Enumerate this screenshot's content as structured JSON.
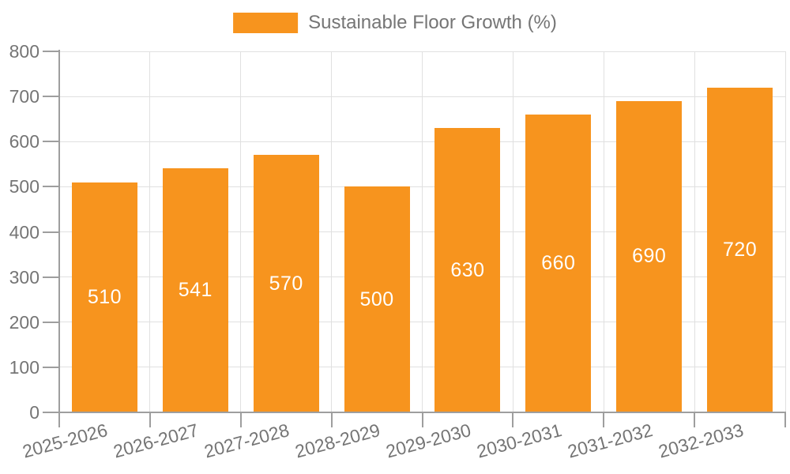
{
  "chart_data": {
    "type": "bar",
    "title": "",
    "legend": {
      "position": "top-center",
      "label": "Sustainable Floor Growth (%)"
    },
    "categories": [
      "2025-2026",
      "2026-2027",
      "2027-2028",
      "2028-2029",
      "2029-2030",
      "2030-2031",
      "2031-2032",
      "2032-2033"
    ],
    "series": [
      {
        "name": "Sustainable Floor Growth (%)",
        "color": "#F7941E",
        "values": [
          510,
          541,
          570,
          500,
          630,
          660,
          690,
          720
        ]
      }
    ],
    "value_labels": {
      "visible": true,
      "position": "center-of-bar",
      "color": "#FFFFFF"
    },
    "xlabel": "",
    "ylabel": "",
    "x_axis": {
      "tick_label_rotation_deg": -15,
      "tick_labels": [
        "2025-2026",
        "2026-2027",
        "2027-2028",
        "2028-2029",
        "2029-2030",
        "2030-2031",
        "2031-2032",
        "2032-2033"
      ]
    },
    "y_axis": {
      "min": 0,
      "max": 800,
      "tick_step": 100,
      "tick_labels": [
        "0",
        "100",
        "200",
        "300",
        "400",
        "500",
        "600",
        "700",
        "800"
      ]
    },
    "grid": {
      "horizontal": true,
      "vertical": true
    }
  },
  "colors": {
    "bar": "#F7941E",
    "grid": "#E0E0E0",
    "axis": "#9E9E9E",
    "tick": "#9E9E9E",
    "label_text": "#757575",
    "value_text": "#FFFFFF",
    "background": "#FFFFFF"
  }
}
